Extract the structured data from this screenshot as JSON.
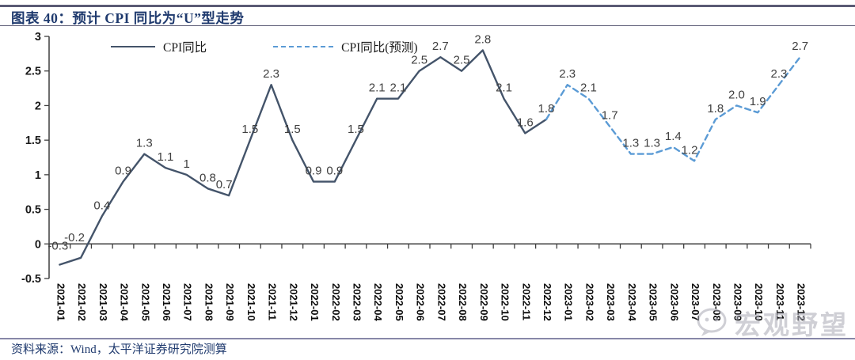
{
  "header": {
    "title": "图表 40：预计 CPI 同比为“U”型走势"
  },
  "footer": {
    "source": "资料来源：Wind，太平洋证券研究院测算"
  },
  "watermark": {
    "icon": "speech-bubble-icon",
    "text": "宏观野望"
  },
  "colors": {
    "actual_line": "#44546A",
    "forecast_line": "#5B9BD5",
    "title_text": "#1F3A6E",
    "data_label": "#404040",
    "axis_line": "#3f3f3f",
    "axis_text": "#1a1a1a",
    "separator": "#5a5a74",
    "separator_light": "#8787a8",
    "watermark": "#a8a8b4"
  },
  "chart_data": {
    "type": "line",
    "title": "",
    "xlabel": "",
    "ylabel": "",
    "grid": false,
    "legend_position": "top-inside",
    "ylim": [
      -0.5,
      3
    ],
    "yticks": [
      "-0.5",
      "0",
      "0.5",
      "1",
      "1.5",
      "2",
      "2.5",
      "3"
    ],
    "categories": [
      "2021-01",
      "2021-02",
      "2021-03",
      "2021-04",
      "2021-05",
      "2021-06",
      "2021-07",
      "2021-08",
      "2021-09",
      "2021-10",
      "2021-11",
      "2021-12",
      "2022-01",
      "2022-02",
      "2022-03",
      "2022-04",
      "2022-05",
      "2022-06",
      "2022-07",
      "2022-08",
      "2022-09",
      "2022-10",
      "2022-11",
      "2022-12",
      "2023-01",
      "2023-02",
      "2023-03",
      "2023-04",
      "2023-05",
      "2023-06",
      "2023-07",
      "2023-08",
      "2023-09",
      "2023-10",
      "2023-11",
      "2023-12"
    ],
    "point_labels": [
      "-0.3",
      "-0.2",
      "0.4",
      "0.9",
      "1.3",
      "1.1",
      "1",
      "0.8",
      "0.7",
      "1.5",
      "2.3",
      "1.5",
      "0.9",
      "0.9",
      "1.5",
      "2.1",
      "2.1",
      "2.5",
      "2.7",
      "2.5",
      "2.8",
      "2.1",
      "1.6",
      "1.8",
      "2.3",
      "2.1",
      "1.7",
      "1.3",
      "1.3",
      "1.4",
      "1.2",
      "1.8",
      "2.0",
      "1.9",
      "2.3",
      "2.7"
    ],
    "series": [
      {
        "name": "CPI同比",
        "style": "solid",
        "color": "#44546A",
        "values": [
          -0.3,
          -0.2,
          0.4,
          0.9,
          1.3,
          1.1,
          1.0,
          0.8,
          0.7,
          1.5,
          2.3,
          1.5,
          0.9,
          0.9,
          1.5,
          2.1,
          2.1,
          2.5,
          2.7,
          2.5,
          2.8,
          2.1,
          1.6,
          1.8,
          null,
          null,
          null,
          null,
          null,
          null,
          null,
          null,
          null,
          null,
          null,
          null
        ]
      },
      {
        "name": "CPI同比(预测)",
        "style": "dashed",
        "color": "#5B9BD5",
        "values": [
          null,
          null,
          null,
          null,
          null,
          null,
          null,
          null,
          null,
          null,
          null,
          null,
          null,
          null,
          null,
          null,
          null,
          null,
          null,
          null,
          null,
          null,
          null,
          1.8,
          2.3,
          2.1,
          1.7,
          1.3,
          1.3,
          1.4,
          1.2,
          1.8,
          2.0,
          1.9,
          2.3,
          2.7
        ]
      }
    ]
  }
}
